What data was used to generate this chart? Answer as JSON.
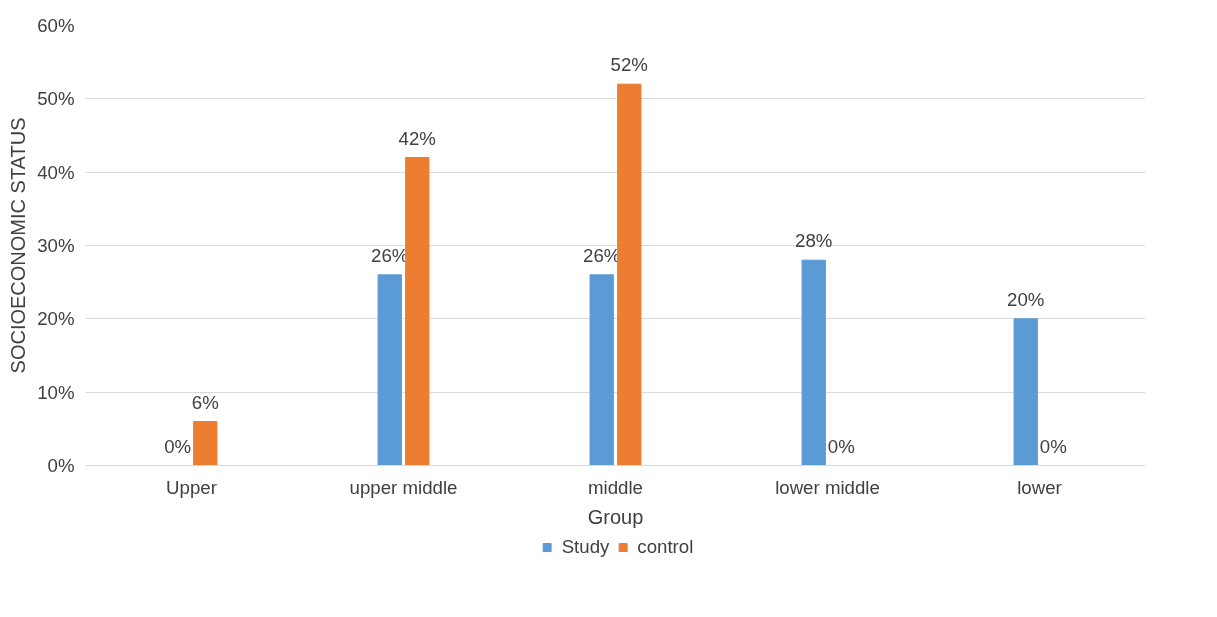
{
  "chart_data": {
    "type": "bar",
    "xlabel": "Group",
    "ylabel": "SOCIOECONOMIC STATUS",
    "categories": [
      "Upper",
      "upper middle",
      "middle",
      "lower middle",
      "lower"
    ],
    "series": [
      {
        "name": "Study",
        "color": "#5b9bd5",
        "values": [
          0,
          26,
          26,
          28,
          20
        ],
        "value_labels": [
          "0%",
          "26%",
          "26%",
          "28%",
          "20%"
        ]
      },
      {
        "name": "control",
        "color": "#ed7d31",
        "values": [
          6,
          42,
          52,
          0,
          0
        ],
        "value_labels": [
          "6%",
          "42%",
          "52%",
          "0%",
          "0%"
        ]
      }
    ],
    "ylim": [
      0,
      60
    ],
    "yticks": [
      {
        "value": 0,
        "label": "0%"
      },
      {
        "value": 10,
        "label": "10%"
      },
      {
        "value": 20,
        "label": "20%"
      },
      {
        "value": 30,
        "label": "30%"
      },
      {
        "value": 40,
        "label": "40%"
      },
      {
        "value": 50,
        "label": "50%"
      },
      {
        "value": 60,
        "label": "60%"
      }
    ],
    "grid": "y",
    "legend": "bottom"
  }
}
